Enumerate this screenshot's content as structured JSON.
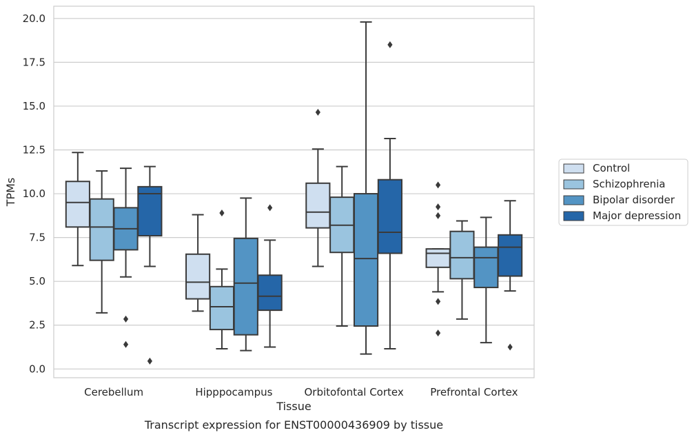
{
  "chart_data": {
    "type": "box",
    "title": "",
    "caption": "Transcript expression for ENST00000436909 by tissue",
    "xlabel": "Tissue",
    "ylabel": "TPMs",
    "ylim": [
      -0.5,
      20.7
    ],
    "yticks": [
      "0.0",
      "2.5",
      "5.0",
      "7.5",
      "10.0",
      "12.5",
      "15.0",
      "17.5",
      "20.0"
    ],
    "grid": "horizontal",
    "legend_position": "right",
    "categories": [
      "Cerebellum",
      "Hipppocampus",
      "Orbitofontal Cortex",
      "Prefrontal Cortex"
    ],
    "series": [
      {
        "name": "Control",
        "color": "#cfdff0",
        "boxes": [
          {
            "whislo": 5.9,
            "q1": 8.1,
            "med": 9.5,
            "q3": 10.7,
            "whishi": 12.35,
            "fliers": []
          },
          {
            "whislo": 3.3,
            "q1": 4.0,
            "med": 4.95,
            "q3": 6.55,
            "whishi": 8.8,
            "fliers": []
          },
          {
            "whislo": 5.85,
            "q1": 8.05,
            "med": 8.95,
            "q3": 10.6,
            "whishi": 12.55,
            "fliers": [
              14.65
            ]
          },
          {
            "whislo": 4.4,
            "q1": 5.8,
            "med": 6.6,
            "q3": 6.85,
            "whishi": 6.85,
            "fliers": [
              10.5,
              9.25,
              8.75,
              3.85,
              2.05
            ]
          }
        ]
      },
      {
        "name": "Schizophrenia",
        "color": "#9ac4df",
        "boxes": [
          {
            "whislo": 3.2,
            "q1": 6.2,
            "med": 8.1,
            "q3": 9.7,
            "whishi": 11.3,
            "fliers": []
          },
          {
            "whislo": 1.15,
            "q1": 2.25,
            "med": 3.55,
            "q3": 4.7,
            "whishi": 5.7,
            "fliers": [
              8.9
            ]
          },
          {
            "whislo": 2.45,
            "q1": 6.65,
            "med": 8.2,
            "q3": 9.8,
            "whishi": 11.55,
            "fliers": []
          },
          {
            "whislo": 2.85,
            "q1": 5.15,
            "med": 6.35,
            "q3": 7.85,
            "whishi": 8.45,
            "fliers": []
          }
        ]
      },
      {
        "name": "Bipolar disorder",
        "color": "#5394c4",
        "boxes": [
          {
            "whislo": 5.25,
            "q1": 6.8,
            "med": 8.0,
            "q3": 9.2,
            "whishi": 11.45,
            "fliers": [
              2.85,
              1.4
            ]
          },
          {
            "whislo": 1.05,
            "q1": 1.95,
            "med": 4.9,
            "q3": 7.45,
            "whishi": 9.75,
            "fliers": []
          },
          {
            "whislo": 0.85,
            "q1": 2.45,
            "med": 6.3,
            "q3": 10.0,
            "whishi": 19.8,
            "fliers": []
          },
          {
            "whislo": 1.5,
            "q1": 4.65,
            "med": 6.35,
            "q3": 6.95,
            "whishi": 8.65,
            "fliers": []
          }
        ]
      },
      {
        "name": "Major depression",
        "color": "#2566a8",
        "boxes": [
          {
            "whislo": 5.85,
            "q1": 7.6,
            "med": 10.0,
            "q3": 10.4,
            "whishi": 11.55,
            "fliers": [
              0.45
            ]
          },
          {
            "whislo": 1.25,
            "q1": 3.35,
            "med": 4.15,
            "q3": 5.35,
            "whishi": 7.35,
            "fliers": [
              9.2
            ]
          },
          {
            "whislo": 1.15,
            "q1": 6.6,
            "med": 7.8,
            "q3": 10.8,
            "whishi": 13.15,
            "fliers": [
              18.5
            ]
          },
          {
            "whislo": 4.45,
            "q1": 5.3,
            "med": 6.95,
            "q3": 7.65,
            "whishi": 9.6,
            "fliers": [
              1.25
            ]
          }
        ]
      }
    ]
  }
}
